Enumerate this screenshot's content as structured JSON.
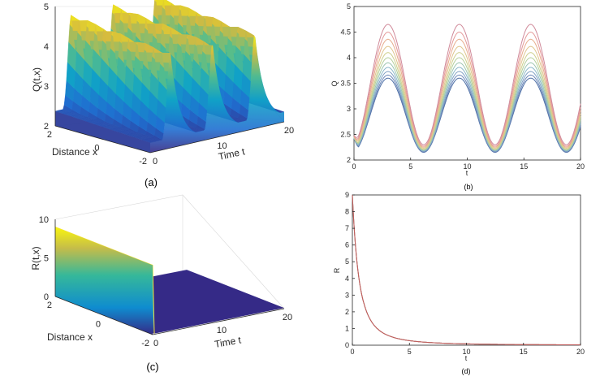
{
  "chart_data": [
    {
      "id": "a",
      "type": "surface",
      "caption": "(a)",
      "xlabel": "Time t",
      "ylabel": "Distance x",
      "zlabel": "Q(t,x)",
      "x_ticks": [
        "0",
        "10",
        "20"
      ],
      "y_ticks": [
        "2",
        "0",
        "-2"
      ],
      "z_ticks": [
        "2",
        "3",
        "4",
        "5"
      ],
      "xlim": [
        0,
        20
      ],
      "ylim": [
        -2,
        2
      ],
      "zlim": [
        2,
        5
      ],
      "t_peaks": [
        3.0,
        9.3,
        15.6
      ],
      "z_min": 2.1,
      "z_max": 4.7
    },
    {
      "id": "b",
      "type": "line",
      "caption": "(b)",
      "xlabel": "t",
      "ylabel": "Q",
      "x_ticks": [
        "0",
        "5",
        "10",
        "15",
        "20"
      ],
      "y_ticks": [
        "2",
        "2.5",
        "3",
        "3.5",
        "4",
        "4.5",
        "5"
      ],
      "xlim": [
        0,
        20
      ],
      "ylim": [
        2,
        5
      ],
      "period": 6.3,
      "series_count": 11,
      "peak_values": [
        3.6,
        3.66,
        3.73,
        3.81,
        3.9,
        4.0,
        4.1,
        4.22,
        4.36,
        4.5,
        4.65
      ],
      "trough_values": [
        2.15,
        2.16,
        2.17,
        2.18,
        2.19,
        2.2,
        2.21,
        2.23,
        2.25,
        2.27,
        2.3
      ],
      "colors": [
        "#4d6fa6",
        "#6b86b8",
        "#7fa0c4",
        "#8ab7c8",
        "#9cc5b0",
        "#b5cf9a",
        "#cfd08e",
        "#e0c48d",
        "#e8ad8e",
        "#e59b9b",
        "#d08a9a"
      ]
    },
    {
      "id": "c",
      "type": "surface",
      "caption": "(c)",
      "xlabel": "Time t",
      "ylabel": "Distance x",
      "zlabel": "R(t,x)",
      "x_ticks": [
        "0",
        "10",
        "20"
      ],
      "y_ticks": [
        "2",
        "0",
        "-2"
      ],
      "z_ticks": [
        "0",
        "5",
        "10"
      ],
      "xlim": [
        0,
        20
      ],
      "ylim": [
        -2,
        2
      ],
      "zlim": [
        0,
        10
      ],
      "initial_value": 9
    },
    {
      "id": "d",
      "type": "line",
      "caption": "(d)",
      "xlabel": "t",
      "ylabel": "R",
      "x_ticks": [
        "0",
        "5",
        "10",
        "15",
        "20"
      ],
      "y_ticks": [
        "0",
        "1",
        "2",
        "3",
        "4",
        "5",
        "6",
        "7",
        "8",
        "9"
      ],
      "xlim": [
        0,
        20
      ],
      "ylim": [
        0,
        9
      ],
      "initial_value": 9,
      "decay_k": 1.6,
      "series_count": 3,
      "colors": [
        "#4d6fa6",
        "#e0a070",
        "#c05a5a"
      ]
    }
  ]
}
